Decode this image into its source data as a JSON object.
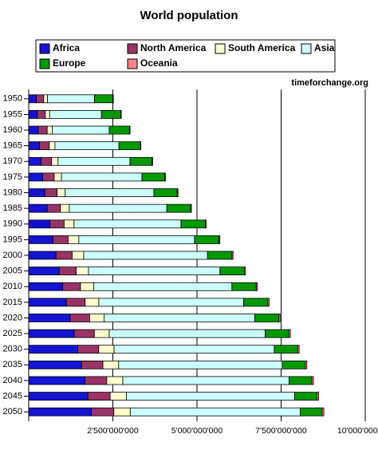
{
  "chart_data": {
    "type": "stacked-bar-horizontal",
    "title": "World population",
    "source": "timeforchange.org",
    "categories": [
      "1950",
      "1955",
      "1960",
      "1965",
      "1970",
      "1975",
      "1980",
      "1985",
      "1990",
      "1995",
      "2000",
      "2005",
      "2010",
      "2015",
      "2020",
      "2025",
      "2030",
      "2035",
      "2040",
      "2045",
      "2050"
    ],
    "series": [
      {
        "name": "Africa",
        "color": "#1414d2",
        "values": [
          227000000,
          254000000,
          285000000,
          322000000,
          366000000,
          417000000,
          478000000,
          550000000,
          632000000,
          720000000,
          811000000,
          906000000,
          1010000000,
          1120000000,
          1230000000,
          1350000000,
          1460000000,
          1570000000,
          1670000000,
          1760000000,
          1860000000
        ]
      },
      {
        "name": "North America",
        "color": "#993366",
        "values": [
          220000000,
          240000000,
          265000000,
          290000000,
          315000000,
          340000000,
          365000000,
          390000000,
          420000000,
          450000000,
          480000000,
          505000000,
          530000000,
          555000000,
          580000000,
          600000000,
          620000000,
          635000000,
          650000000,
          660000000,
          670000000
        ]
      },
      {
        "name": "South America",
        "color": "#ffffcc",
        "values": [
          112000000,
          128000000,
          147000000,
          168000000,
          191000000,
          215000000,
          241000000,
          268000000,
          294000000,
          319000000,
          343000000,
          366000000,
          388000000,
          408000000,
          427000000,
          443000000,
          457000000,
          468000000,
          477000000,
          483000000,
          487000000
        ]
      },
      {
        "name": "Asia",
        "color": "#ccffff",
        "values": [
          1396000000,
          1540000000,
          1694000000,
          1900000000,
          2138000000,
          2394000000,
          2636000000,
          2896000000,
          3181000000,
          3437000000,
          3680000000,
          3906000000,
          4110000000,
          4305000000,
          4480000000,
          4635000000,
          4760000000,
          4860000000,
          4940000000,
          5000000000,
          5050000000
        ]
      },
      {
        "name": "Europe",
        "color": "#009900",
        "values": [
          547000000,
          575000000,
          604000000,
          635000000,
          656000000,
          676000000,
          693000000,
          707000000,
          721000000,
          727000000,
          727000000,
          725000000,
          722000000,
          718000000,
          712000000,
          705000000,
          696000000,
          686000000,
          676000000,
          664000000,
          652000000
        ]
      },
      {
        "name": "Oceania",
        "color": "#ff8080",
        "values": [
          13000000,
          14000000,
          16000000,
          18000000,
          19000000,
          21000000,
          23000000,
          25000000,
          27000000,
          29000000,
          31000000,
          33000000,
          36000000,
          38000000,
          40000000,
          42000000,
          44000000,
          46000000,
          48000000,
          50000000,
          52000000
        ]
      }
    ],
    "xlim": [
      0,
      10000000000
    ],
    "xticks": [
      {
        "value": 2500000000,
        "label": "2'500'000'000"
      },
      {
        "value": 5000000000,
        "label": "5'000'000'000"
      },
      {
        "value": 7500000000,
        "label": "7'500'000'000"
      },
      {
        "value": 10000000000,
        "label": "10'000'000'000"
      }
    ],
    "grid": true
  }
}
